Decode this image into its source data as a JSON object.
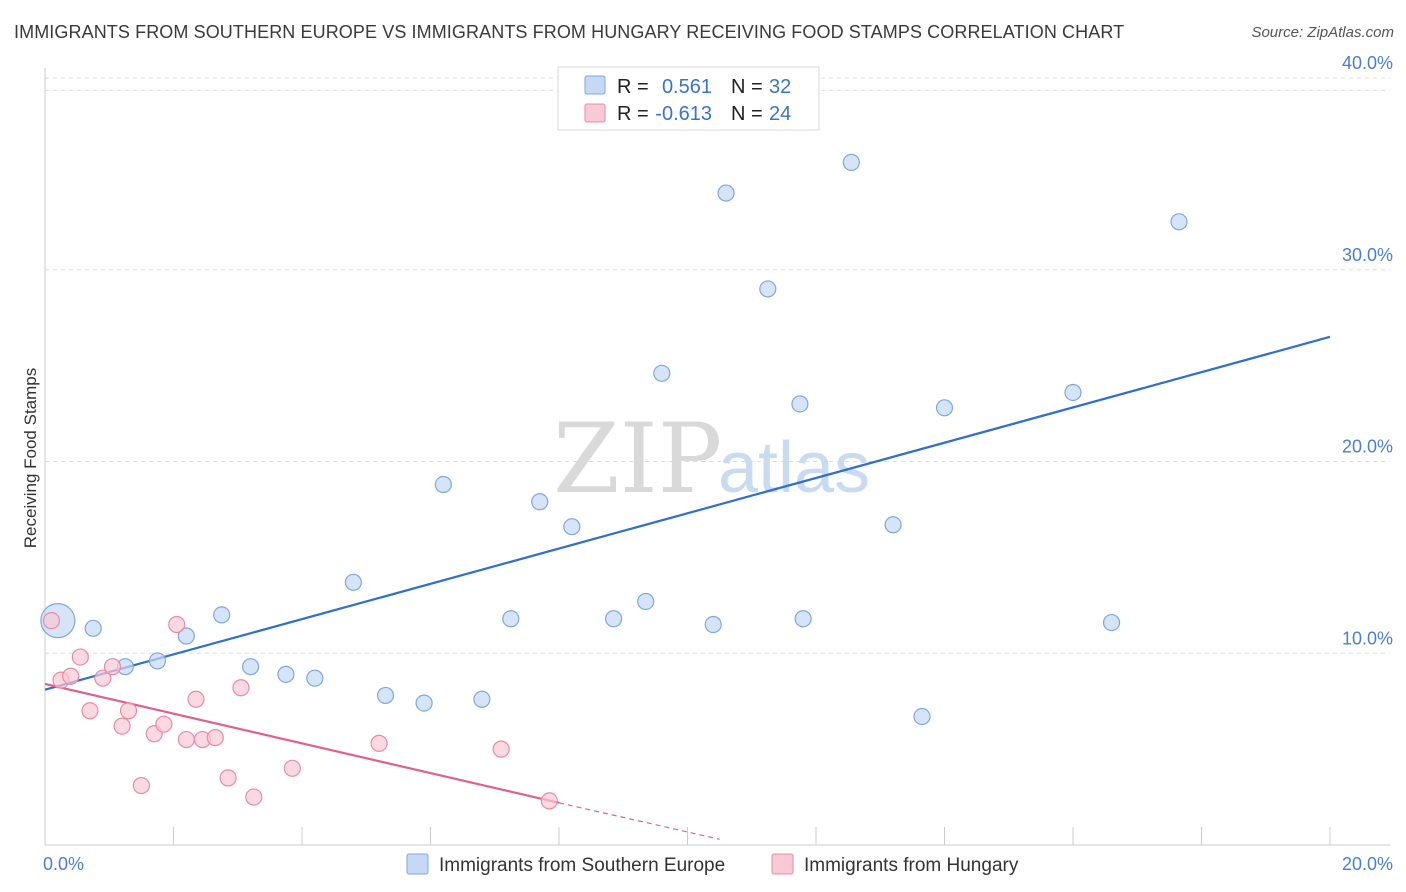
{
  "title": "IMMIGRANTS FROM SOUTHERN EUROPE VS IMMIGRANTS FROM HUNGARY RECEIVING FOOD STAMPS CORRELATION CHART",
  "source": "Source: ZipAtlas.com",
  "watermark": {
    "zip": "ZIP",
    "atlas": "atlas"
  },
  "colors": {
    "blue_fill": "#c5d9f4",
    "blue_stroke": "#7ea7e0",
    "blue_line": "#2f6fce",
    "pink_fill": "#f8c9d6",
    "pink_stroke": "#e98aa8",
    "pink_line": "#e0608d",
    "grid": "#dddddd",
    "tick_label": "#4a7fcf"
  },
  "legend": {
    "rows": [
      {
        "r_label": "R = ",
        "r_value": "0.561",
        "n_label": "N = ",
        "n_value": "32"
      },
      {
        "r_label": "R = ",
        "r_value": "-0.613",
        "n_label": "N = ",
        "n_value": "24"
      }
    ]
  },
  "chart_data": {
    "type": "scatter",
    "xlabel": "",
    "ylabel": "Receiving Food Stamps",
    "xlim": [
      0,
      20
    ],
    "ylim": [
      0,
      40
    ],
    "x_tick_labels": [
      "0.0%",
      "20.0%"
    ],
    "y_ticks": [
      10,
      20,
      30,
      40
    ],
    "y_tick_labels": [
      "10.0%",
      "20.0%",
      "30.0%",
      "40.0%"
    ],
    "grid": true,
    "legend_position": "top-center",
    "series": [
      {
        "name": "Immigrants from Southern Europe",
        "color": "#7ea7e0",
        "points": [
          {
            "x": 0.2,
            "y": 11.7,
            "big": true
          },
          {
            "x": 0.75,
            "y": 11.3
          },
          {
            "x": 1.25,
            "y": 9.3
          },
          {
            "x": 1.75,
            "y": 9.6
          },
          {
            "x": 2.2,
            "y": 10.9
          },
          {
            "x": 2.75,
            "y": 12.0
          },
          {
            "x": 3.2,
            "y": 9.3
          },
          {
            "x": 3.75,
            "y": 8.9
          },
          {
            "x": 4.2,
            "y": 8.7
          },
          {
            "x": 4.8,
            "y": 13.7
          },
          {
            "x": 5.3,
            "y": 7.8
          },
          {
            "x": 5.9,
            "y": 7.4
          },
          {
            "x": 6.2,
            "y": 18.8
          },
          {
            "x": 6.8,
            "y": 7.6
          },
          {
            "x": 7.25,
            "y": 11.8
          },
          {
            "x": 7.7,
            "y": 17.9
          },
          {
            "x": 8.2,
            "y": 16.6
          },
          {
            "x": 8.85,
            "y": 11.8
          },
          {
            "x": 9.35,
            "y": 12.7
          },
          {
            "x": 9.6,
            "y": 24.6
          },
          {
            "x": 10.4,
            "y": 11.5
          },
          {
            "x": 10.6,
            "y": 34.0
          },
          {
            "x": 11.25,
            "y": 29.0
          },
          {
            "x": 11.75,
            "y": 23.0
          },
          {
            "x": 11.8,
            "y": 11.8
          },
          {
            "x": 12.55,
            "y": 35.6
          },
          {
            "x": 13.2,
            "y": 16.7
          },
          {
            "x": 13.65,
            "y": 6.7
          },
          {
            "x": 14.0,
            "y": 22.8
          },
          {
            "x": 16.0,
            "y": 23.6
          },
          {
            "x": 16.6,
            "y": 11.6
          },
          {
            "x": 17.65,
            "y": 32.5
          }
        ],
        "trend": {
          "x": [
            0,
            20
          ],
          "y": [
            8.1,
            26.5
          ]
        }
      },
      {
        "name": "Immigrants from Hungary",
        "color": "#e98aa8",
        "points": [
          {
            "x": 0.1,
            "y": 11.7
          },
          {
            "x": 0.25,
            "y": 8.6
          },
          {
            "x": 0.4,
            "y": 8.8
          },
          {
            "x": 0.55,
            "y": 9.8
          },
          {
            "x": 0.7,
            "y": 7.0
          },
          {
            "x": 0.9,
            "y": 8.7
          },
          {
            "x": 1.05,
            "y": 9.3
          },
          {
            "x": 1.2,
            "y": 6.2
          },
          {
            "x": 1.3,
            "y": 7.0
          },
          {
            "x": 1.5,
            "y": 3.1
          },
          {
            "x": 1.7,
            "y": 5.8
          },
          {
            "x": 1.85,
            "y": 6.3
          },
          {
            "x": 2.05,
            "y": 11.5
          },
          {
            "x": 2.2,
            "y": 5.5
          },
          {
            "x": 2.35,
            "y": 7.6
          },
          {
            "x": 2.45,
            "y": 5.5
          },
          {
            "x": 2.65,
            "y": 5.6
          },
          {
            "x": 2.85,
            "y": 3.5
          },
          {
            "x": 3.05,
            "y": 8.2
          },
          {
            "x": 3.25,
            "y": 2.5
          },
          {
            "x": 3.85,
            "y": 4.0
          },
          {
            "x": 5.2,
            "y": 5.3
          },
          {
            "x": 7.1,
            "y": 5.0
          },
          {
            "x": 7.85,
            "y": 2.3
          }
        ],
        "trend": {
          "x": [
            0,
            8.0
          ],
          "y": [
            8.4,
            2.2
          ]
        },
        "trend_dashed": {
          "x": [
            8.0,
            10.5
          ],
          "y": [
            2.2,
            0.3
          ]
        }
      }
    ]
  }
}
